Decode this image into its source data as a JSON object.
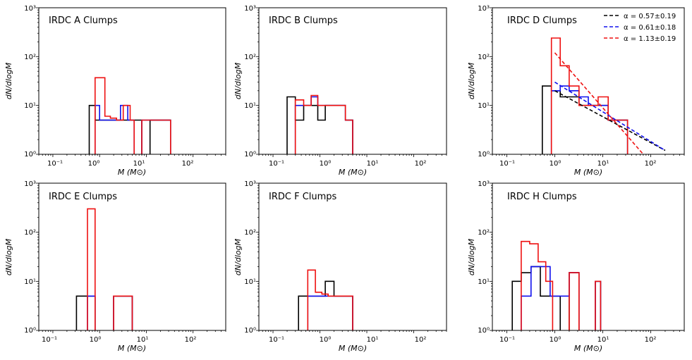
{
  "figure": {
    "xlabel": "M (M⊙)",
    "ylabel": "dN/dlogM",
    "xtick_labels": [
      "10⁻¹",
      "10⁰",
      "10¹",
      "10²"
    ],
    "ytick_labels": [
      "10⁰",
      "10¹",
      "10²",
      "10³"
    ]
  },
  "colors": {
    "black": "#000000",
    "blue": "#1010ee",
    "red": "#ee1111"
  },
  "chart_data": [
    {
      "type": "histogram-step",
      "title": "IRDC A Clumps",
      "xscale": "log",
      "yscale": "log",
      "xlim": [
        0.05,
        500
      ],
      "ylim": [
        1,
        1000
      ],
      "series": [
        {
          "name": "black",
          "edges": [
            0.6,
            0.8,
            1.0,
            1.3,
            2.0,
            2.8,
            4.0,
            5.5,
            8.0,
            12.0,
            18.0,
            33.0
          ],
          "values": [
            10,
            5,
            5,
            5,
            5,
            5,
            5,
            5,
            0,
            5,
            5
          ]
        },
        {
          "name": "blue",
          "edges": [
            0.8,
            1.0,
            1.3,
            2.0,
            2.8,
            4.0,
            5.5,
            8.0,
            12.0,
            18.0,
            33.0
          ],
          "values": [
            10,
            5,
            5,
            5,
            10,
            5,
            0,
            5,
            5,
            5
          ]
        },
        {
          "name": "red",
          "edges": [
            0.8,
            1.3,
            1.7,
            2.3,
            3.2,
            4.5,
            5.5,
            8.0,
            12.0,
            18.0,
            33.0
          ],
          "values": [
            37,
            6,
            5.5,
            5,
            10,
            5,
            0,
            5,
            5,
            5
          ]
        }
      ]
    },
    {
      "type": "histogram-step",
      "title": "IRDC B Clumps",
      "xscale": "log",
      "yscale": "log",
      "xlim": [
        0.05,
        500
      ],
      "ylim": [
        1,
        1000
      ],
      "series": [
        {
          "name": "black",
          "edges": [
            0.2,
            0.3,
            0.45,
            0.65,
            0.9,
            1.3,
            3.5,
            5.0
          ],
          "values": [
            15,
            5,
            10,
            10,
            5,
            10,
            5
          ]
        },
        {
          "name": "blue",
          "edges": [
            0.3,
            0.45,
            0.65,
            0.9,
            1.3,
            3.5,
            5.0
          ],
          "values": [
            10,
            10,
            15,
            10,
            10,
            5
          ]
        },
        {
          "name": "red",
          "edges": [
            0.3,
            0.45,
            0.65,
            0.9,
            1.3,
            3.5,
            5.0
          ],
          "values": [
            13,
            10,
            16,
            10,
            10,
            5
          ]
        }
      ]
    },
    {
      "type": "histogram-step",
      "title": "IRDC D Clumps",
      "xscale": "log",
      "yscale": "log",
      "xlim": [
        0.05,
        500
      ],
      "ylim": [
        1,
        1000
      ],
      "series": [
        {
          "name": "black",
          "edges": [
            0.55,
            0.85,
            1.3,
            2.0,
            3.2,
            5.0,
            8.0,
            13.0,
            20.0,
            33.0
          ],
          "values": [
            25,
            20,
            15,
            15,
            10,
            10,
            10,
            5,
            5
          ]
        },
        {
          "name": "blue",
          "edges": [
            0.85,
            1.3,
            2.0,
            3.2,
            5.0,
            8.0,
            13.0,
            20.0,
            33.0
          ],
          "values": [
            20,
            25,
            20,
            15,
            10,
            10,
            5,
            5
          ]
        },
        {
          "name": "red",
          "edges": [
            0.85,
            1.3,
            2.0,
            3.2,
            5.0,
            8.0,
            13.0,
            20.0,
            33.0
          ],
          "values": [
            240,
            65,
            25,
            10,
            10,
            15,
            5,
            5
          ]
        }
      ],
      "fits": [
        {
          "label": "α = 0.57±0.19",
          "color": "black",
          "x": [
            1.0,
            200.0
          ],
          "y": [
            20,
            1.2
          ]
        },
        {
          "label": "α = 0.61±0.18",
          "color": "blue",
          "x": [
            1.0,
            200.0
          ],
          "y": [
            30,
            1.2
          ]
        },
        {
          "label": "α = 1.13±0.19",
          "color": "red",
          "x": [
            1.0,
            70.0
          ],
          "y": [
            120,
            1.0
          ]
        }
      ],
      "legend": "top-right"
    },
    {
      "type": "histogram-step",
      "title": "IRDC E Clumps",
      "xscale": "log",
      "yscale": "log",
      "xlim": [
        0.05,
        500
      ],
      "ylim": [
        1,
        1000
      ],
      "series": [
        {
          "name": "black",
          "edges": [
            0.32,
            0.55,
            0.8,
            2.0,
            5.0
          ],
          "values": [
            5,
            5,
            0,
            5
          ]
        },
        {
          "name": "blue",
          "edges": [
            0.55,
            0.8,
            2.0,
            5.0
          ],
          "values": [
            5,
            0,
            5
          ]
        },
        {
          "name": "red",
          "edges": [
            0.55,
            0.8,
            2.0,
            5.0
          ],
          "values": [
            300,
            0,
            5
          ]
        }
      ]
    },
    {
      "type": "histogram-step",
      "title": "IRDC F Clumps",
      "xscale": "log",
      "yscale": "log",
      "xlim": [
        0.05,
        500
      ],
      "ylim": [
        1,
        1000
      ],
      "series": [
        {
          "name": "black",
          "edges": [
            0.35,
            0.55,
            0.8,
            1.3,
            2.0,
            3.2,
            5.0
          ],
          "values": [
            5,
            5,
            5,
            10,
            5,
            5
          ]
        },
        {
          "name": "blue",
          "edges": [
            0.55,
            0.8,
            1.3,
            2.0,
            3.2,
            5.0
          ],
          "values": [
            5,
            5,
            5,
            5,
            5
          ]
        },
        {
          "name": "red",
          "edges": [
            0.55,
            0.8,
            1.1,
            1.5,
            2.0,
            3.2,
            5.0
          ],
          "values": [
            17,
            6,
            5.5,
            5,
            5,
            5
          ]
        }
      ]
    },
    {
      "type": "histogram-step",
      "title": "IRDC H Clumps",
      "xscale": "log",
      "yscale": "log",
      "xlim": [
        0.05,
        500
      ],
      "ylim": [
        1,
        1000
      ],
      "series": [
        {
          "name": "black",
          "edges": [
            0.13,
            0.2,
            0.32,
            0.5,
            0.8,
            1.3,
            2.0,
            3.2,
            7.0,
            9.0
          ],
          "values": [
            10,
            15,
            20,
            5,
            5,
            0,
            15,
            0,
            10
          ]
        },
        {
          "name": "blue",
          "edges": [
            0.2,
            0.32,
            0.5,
            0.8,
            1.3,
            2.0,
            3.2,
            7.0,
            9.0
          ],
          "values": [
            5,
            20,
            20,
            5,
            5,
            15,
            0,
            10
          ]
        },
        {
          "name": "red",
          "edges": [
            0.2,
            0.3,
            0.45,
            0.65,
            0.9,
            2.0,
            3.2,
            7.0,
            9.0
          ],
          "values": [
            65,
            58,
            25,
            10,
            0,
            15,
            0,
            10
          ]
        }
      ]
    }
  ]
}
